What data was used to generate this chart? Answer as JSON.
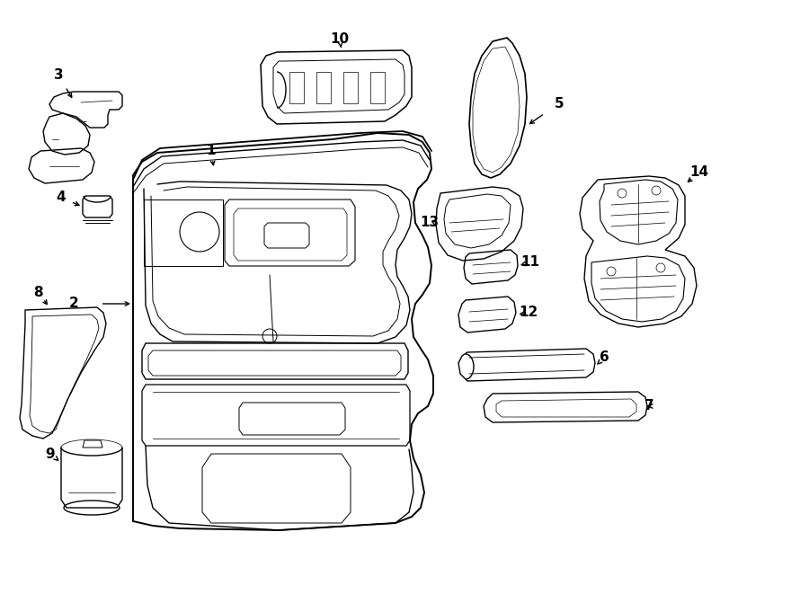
{
  "background_color": "#ffffff",
  "line_color": "#000000",
  "lw": 1.0,
  "figsize": [
    9.0,
    6.61
  ],
  "dpi": 100
}
